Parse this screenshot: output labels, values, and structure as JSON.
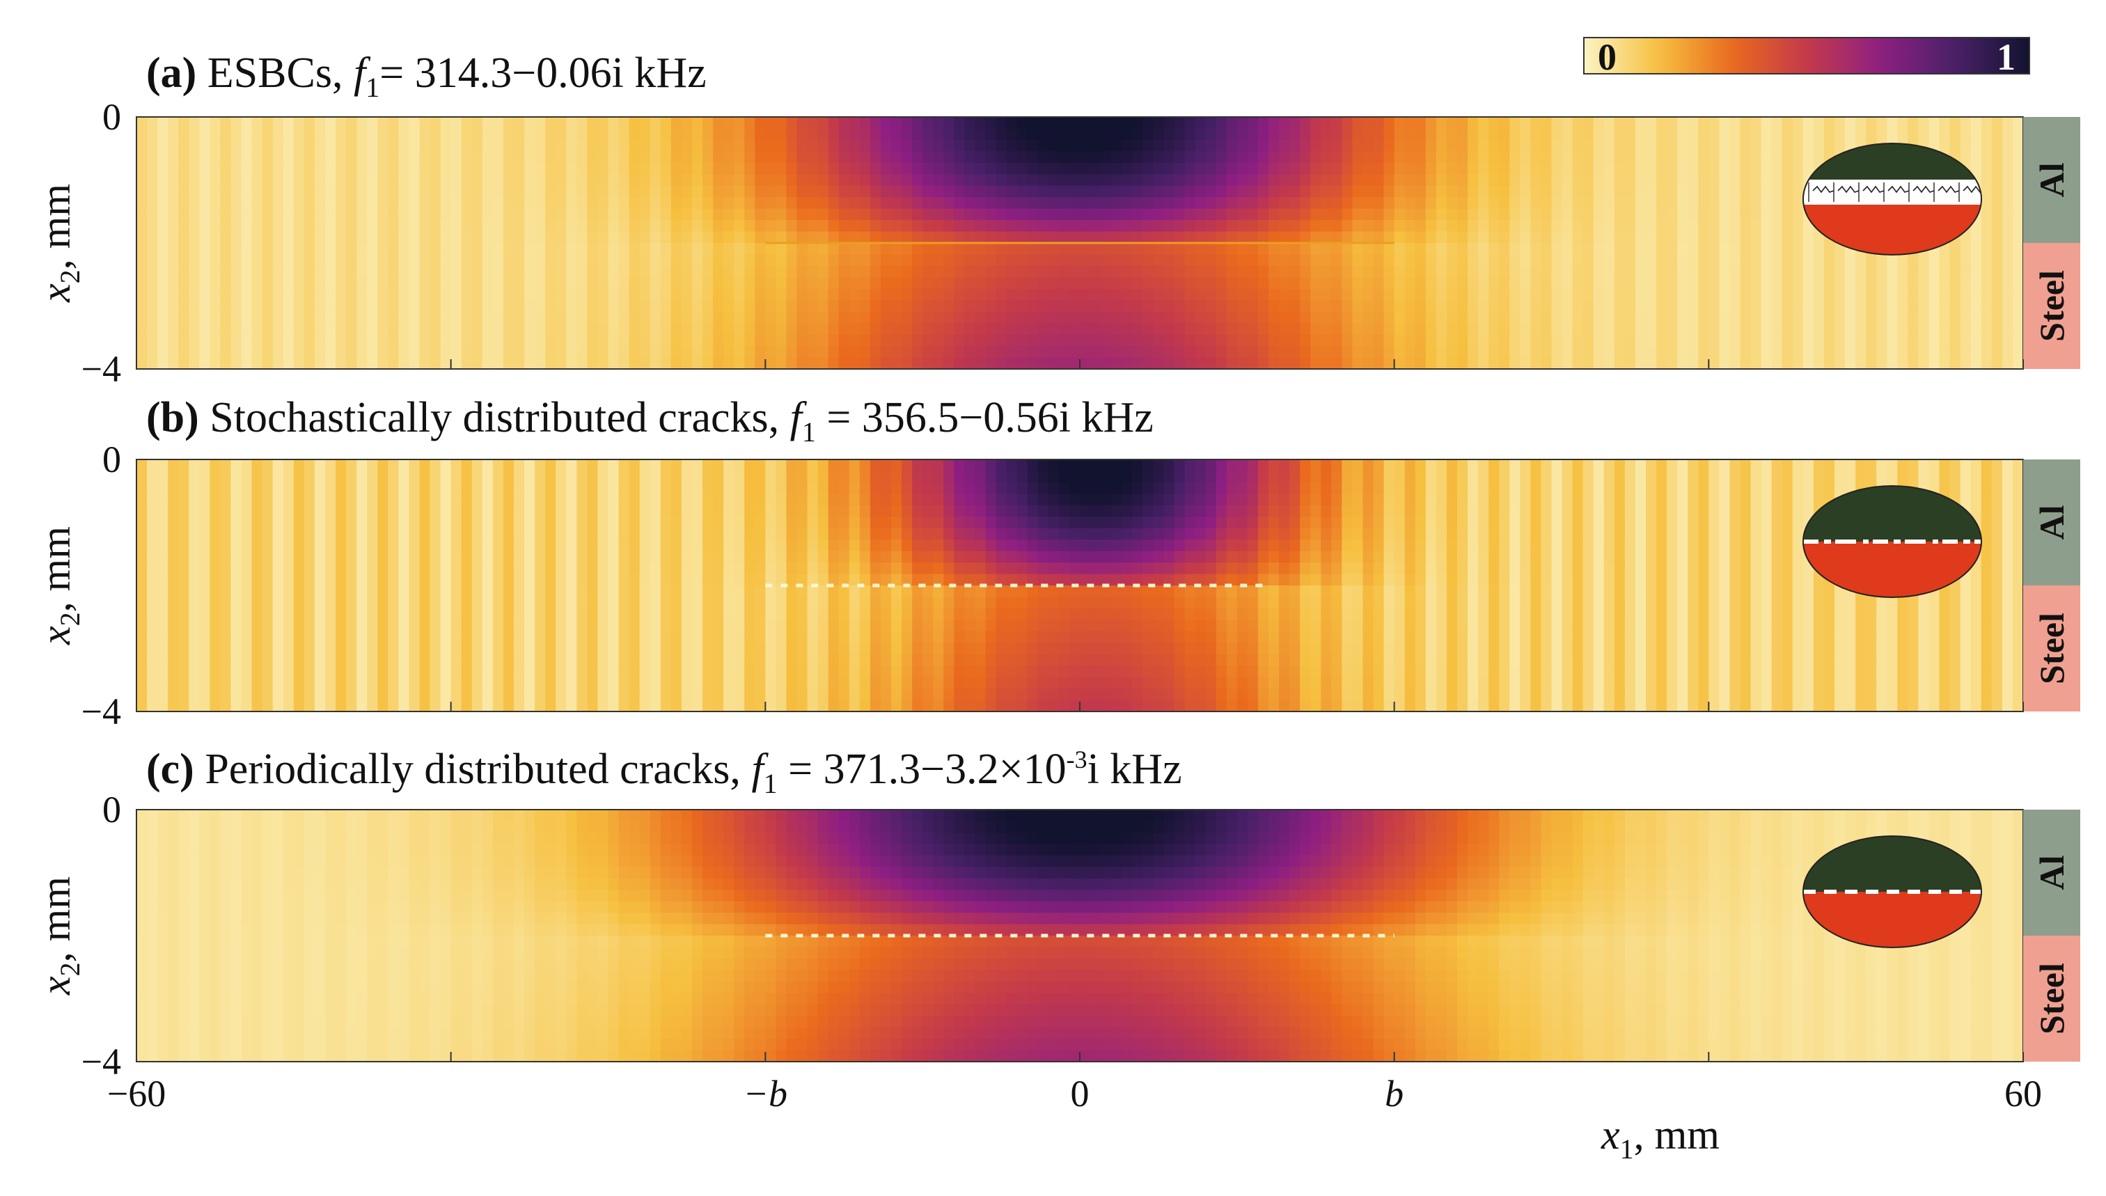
{
  "figure": {
    "colorbar": {
      "min_label": "0",
      "max_label": "1",
      "colormap": "inferno-reversed",
      "stops": [
        "#fbf4c4",
        "#f6c040",
        "#ea6a1e",
        "#c43a4a",
        "#8e1f82",
        "#492068",
        "#12132f"
      ]
    },
    "xaxis": {
      "label_var": "x",
      "label_sub": "1",
      "label_unit": ", mm",
      "ticks": [
        {
          "value": -60,
          "label": "−60",
          "italic": false
        },
        {
          "value": -20,
          "label": "−b",
          "italic": true
        },
        {
          "value": 0,
          "label": "0",
          "italic": false
        },
        {
          "value": 20,
          "label": "b",
          "italic": true
        },
        {
          "value": 60,
          "label": "60",
          "italic": false
        }
      ],
      "minor_ticks": [
        -40,
        40
      ]
    },
    "materials": {
      "top": "Al",
      "bottom": "Steel",
      "top_color": "#8e9e8c",
      "bottom_color": "#f0a090"
    },
    "inset_colors": {
      "top": "#2b3f25",
      "bottom": "#df3a1c"
    }
  },
  "chart_data": [
    {
      "type": "heatmap",
      "title": {
        "tag": "(a)",
        "text": " ESBCs, ",
        "f": "f",
        "sub": "1",
        "value": "= 314.3−0.06i kHz"
      },
      "xlabel": "",
      "ylabel": "x2, mm",
      "xlim": [
        -60,
        60
      ],
      "ylim": [
        -4,
        0
      ],
      "y_ticks": [
        "0",
        "−4"
      ],
      "interface_depth": -2,
      "crack_zone": [
        -20,
        20
      ],
      "mode": {
        "center_x": 0,
        "half_width": 22,
        "peak": 1.0,
        "steel_peak": 0.55,
        "ripple": 0.06
      },
      "inset": "springs"
    },
    {
      "type": "heatmap",
      "title": {
        "tag": "(b)",
        "text": " Stochastically distributed cracks, ",
        "f": "f",
        "sub": "1",
        "value": " = 356.5−0.56i kHz"
      },
      "xlabel": "",
      "ylabel": "x2, mm",
      "xlim": [
        -60,
        60
      ],
      "ylim": [
        -4,
        0
      ],
      "y_ticks": [
        "0",
        "−4"
      ],
      "interface_depth": -2,
      "crack_zone": [
        -20,
        12
      ],
      "mode": {
        "center_x": 1,
        "half_width": 15,
        "peak": 1.0,
        "steel_peak": 0.45,
        "ripple": 0.12
      },
      "inset": "stochastic"
    },
    {
      "type": "heatmap",
      "title": {
        "tag": "(c)",
        "text": " Periodically distributed cracks, ",
        "f": "f",
        "sub": "1",
        "value": " = 371.3−3.2×10",
        "sup": "-3",
        "tail": "i kHz"
      },
      "xlabel": "x1, mm",
      "ylabel": "x2, mm",
      "xlim": [
        -60,
        60
      ],
      "ylim": [
        -4,
        0
      ],
      "y_ticks": [
        "0",
        "−4"
      ],
      "interface_depth": -2,
      "crack_zone": [
        -20,
        20
      ],
      "mode": {
        "center_x": 0,
        "half_width": 28,
        "peak": 1.0,
        "steel_peak": 0.55,
        "ripple": 0.02
      },
      "inset": "periodic"
    }
  ]
}
